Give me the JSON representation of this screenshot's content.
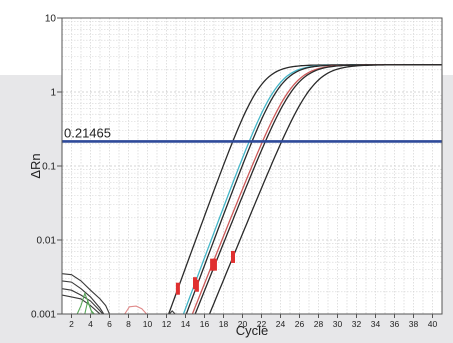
{
  "chart_data": {
    "type": "line",
    "title": "",
    "xlabel": "Cycle",
    "ylabel": "ΔRn",
    "x_ticks": [
      2,
      4,
      6,
      8,
      10,
      12,
      14,
      16,
      18,
      20,
      22,
      24,
      26,
      28,
      30,
      32,
      34,
      36,
      38,
      40
    ],
    "xlim": [
      1,
      41
    ],
    "y_scale": "log",
    "y_ticks": [
      {
        "value": 10,
        "label": "10"
      },
      {
        "value": 1,
        "label": "1"
      },
      {
        "value": 0.1,
        "label": "0.1"
      },
      {
        "value": 0.01,
        "label": "0.01"
      },
      {
        "value": 0.001,
        "label": "0.001"
      }
    ],
    "ylim": [
      0.001,
      10
    ],
    "grid": true,
    "threshold": {
      "value": 0.21465,
      "label": "0.21465",
      "color": "#2e4a9a",
      "label_color": "#e03030"
    },
    "series": [
      {
        "color": "#2a2a2a",
        "mid": 21.8,
        "k": 0.81,
        "plateau": 2.33,
        "marker_color": "#e03030",
        "marker_x": [
          13.2
        ]
      },
      {
        "color": "#44b6c8",
        "mid": 23.6,
        "k": 0.79,
        "plateau": 2.33,
        "marker_color": "#e03030",
        "marker_x": [
          15.0
        ]
      },
      {
        "color": "#2a2a2a",
        "mid": 23.9,
        "k": 0.79,
        "plateau": 2.33,
        "marker_color": "#e03030",
        "marker_x": [
          15.2
        ]
      },
      {
        "color": "#cc5a5a",
        "mid": 25.2,
        "k": 0.74,
        "plateau": 2.33,
        "marker_color": "#e03030",
        "marker_x": [
          16.8
        ]
      },
      {
        "color": "#2a2a2a",
        "mid": 25.5,
        "k": 0.74,
        "plateau": 2.33,
        "marker_color": "#e03030",
        "marker_x": [
          17.1
        ]
      },
      {
        "color": "#2a2a2a",
        "mid": 27.3,
        "k": 0.72,
        "plateau": 2.33,
        "marker_color": "#e03030",
        "marker_x": [
          19.0
        ]
      }
    ],
    "noise_series": [
      {
        "color": "#3a3a3a",
        "points": [
          [
            1,
            0.0035
          ],
          [
            2,
            0.0034
          ],
          [
            3,
            0.0028
          ],
          [
            4,
            0.0021
          ],
          [
            5,
            0.0016
          ],
          [
            5.6,
            0.0013
          ],
          [
            6,
            0.001
          ]
        ]
      },
      {
        "color": "#3a3a3a",
        "points": [
          [
            1,
            0.0028
          ],
          [
            2,
            0.0027
          ],
          [
            3,
            0.0022
          ],
          [
            4,
            0.0017
          ],
          [
            5,
            0.0012
          ],
          [
            5.4,
            0.001
          ]
        ]
      },
      {
        "color": "#3a3a3a",
        "points": [
          [
            1,
            0.0022
          ],
          [
            2,
            0.0021
          ],
          [
            3,
            0.0018
          ],
          [
            4,
            0.0015
          ],
          [
            5,
            0.0011
          ],
          [
            5.3,
            0.001
          ]
        ]
      },
      {
        "color": "#3a3a3a",
        "points": [
          [
            1,
            0.0018
          ],
          [
            2,
            0.0017
          ],
          [
            3,
            0.0016
          ],
          [
            4,
            0.0013
          ],
          [
            5,
            0.001
          ]
        ]
      },
      {
        "color": "#5aa85a",
        "points": [
          [
            2.6,
            0.001
          ],
          [
            3,
            0.0013
          ],
          [
            3.4,
            0.0019
          ],
          [
            3.8,
            0.0014
          ],
          [
            4.2,
            0.001
          ]
        ]
      },
      {
        "color": "#5aa85a",
        "points": [
          [
            3.4,
            0.001
          ],
          [
            3.7,
            0.0015
          ],
          [
            4.1,
            0.0011
          ],
          [
            4.4,
            0.001
          ]
        ]
      },
      {
        "color": "#e08a8a",
        "points": [
          [
            7.6,
            0.001
          ],
          [
            8.1,
            0.00125
          ],
          [
            8.8,
            0.00128
          ],
          [
            9.4,
            0.00118
          ],
          [
            9.9,
            0.001
          ]
        ]
      },
      {
        "color": "#3a3a3a",
        "points": [
          [
            12.3,
            0.001
          ],
          [
            12.6,
            0.0011
          ],
          [
            12.9,
            0.001
          ]
        ]
      }
    ]
  }
}
